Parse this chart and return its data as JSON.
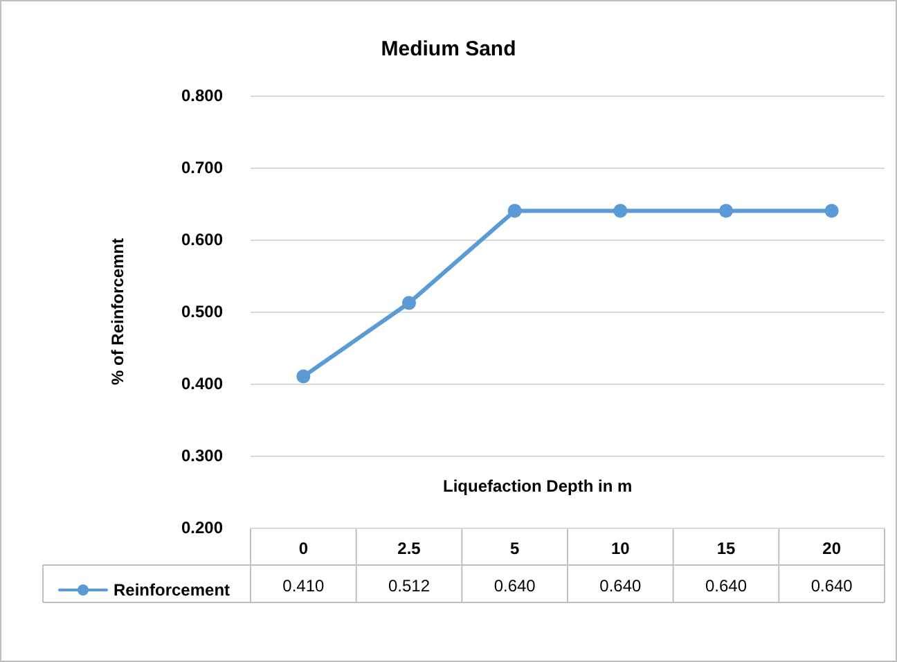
{
  "chart_data": {
    "type": "line",
    "title": "Medium Sand",
    "xlabel": "Liquefaction Depth in m",
    "ylabel": "% of Reinforcemnt",
    "categories": [
      "0",
      "2.5",
      "5",
      "10",
      "15",
      "20"
    ],
    "series": [
      {
        "name": "Reinforcement",
        "color": "#5b9bd5",
        "values": [
          0.41,
          0.512,
          0.64,
          0.64,
          0.64,
          0.64
        ],
        "value_labels": [
          "0.410",
          "0.512",
          "0.640",
          "0.640",
          "0.640",
          "0.640"
        ]
      }
    ],
    "ylim": [
      0.2,
      0.8
    ],
    "yticks": [
      {
        "value": 0.2,
        "label": "0.200"
      },
      {
        "value": 0.3,
        "label": "0.300"
      },
      {
        "value": 0.4,
        "label": "0.400"
      },
      {
        "value": 0.5,
        "label": "0.500"
      },
      {
        "value": 0.6,
        "label": "0.600"
      },
      {
        "value": 0.7,
        "label": "0.700"
      },
      {
        "value": 0.8,
        "label": "0.800"
      }
    ],
    "grid": "y",
    "legend": "bottom left",
    "marker": "circle",
    "line_style": "solid"
  }
}
